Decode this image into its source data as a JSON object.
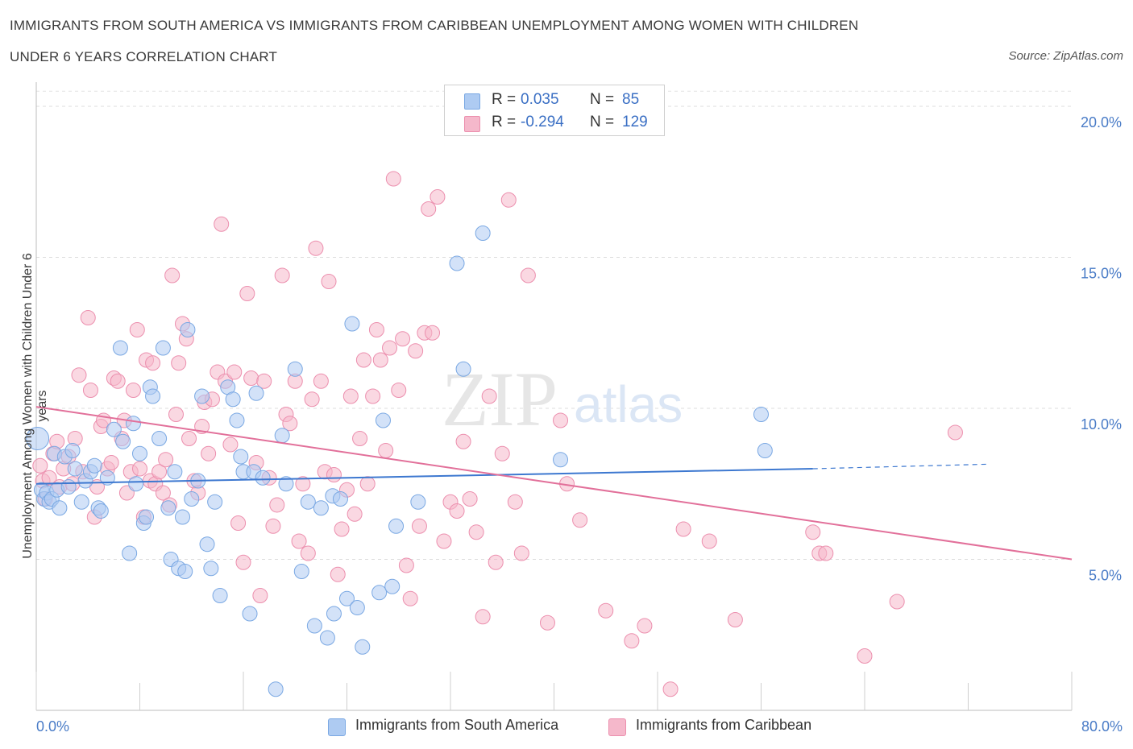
{
  "title": "IMMIGRANTS FROM SOUTH AMERICA VS IMMIGRANTS FROM CARIBBEAN UNEMPLOYMENT AMONG WOMEN WITH CHILDREN",
  "subtitle": "UNDER 6 YEARS CORRELATION CHART",
  "source": "Source: ZipAtlas.com",
  "watermark": "ZIPatlas",
  "legend": {
    "rows": [
      {
        "r_label": "R =",
        "r_value": "0.035",
        "n_label": "N =",
        "n_value": "85",
        "color": "#aecbf2"
      },
      {
        "r_label": "R =",
        "r_value": "-0.294",
        "n_label": "N =",
        "n_value": "129",
        "color": "#f5b8cb"
      }
    ]
  },
  "chart_data": {
    "type": "scatter",
    "title": "IMMIGRANTS FROM SOUTH AMERICA VS IMMIGRANTS FROM CARIBBEAN UNEMPLOYMENT AMONG WOMEN WITH CHILDREN UNDER 6 YEARS CORRELATION CHART",
    "xlabel": "",
    "ylabel": "Unemployment Among Women with Children Under 6 years",
    "xlim": [
      0,
      80
    ],
    "ylim": [
      0,
      20.8
    ],
    "x_tick_labels": [
      "0.0%",
      "80.0%"
    ],
    "y_ticks": [
      5,
      10,
      15,
      20
    ],
    "y_tick_labels": [
      "5.0%",
      "10.0%",
      "15.0%",
      "20.0%"
    ],
    "grid": true,
    "legend_position": "bottom-center",
    "series": [
      {
        "name": "Immigrants from South America",
        "color": "#7aa8e3",
        "fill": "#aecbf2",
        "trend": {
          "x": [
            0,
            60
          ],
          "y": [
            7.5,
            8.0
          ],
          "dashed_to": [
            73.5,
            8.15
          ]
        },
        "points": [
          [
            0.1,
            9.0
          ],
          [
            0.4,
            7.3
          ],
          [
            0.6,
            7.0
          ],
          [
            0.8,
            7.2
          ],
          [
            1.0,
            6.9
          ],
          [
            1.2,
            7.0
          ],
          [
            1.4,
            8.5
          ],
          [
            1.6,
            7.3
          ],
          [
            1.8,
            6.7
          ],
          [
            2.2,
            8.4
          ],
          [
            2.5,
            7.4
          ],
          [
            2.8,
            8.6
          ],
          [
            3.0,
            8.0
          ],
          [
            3.5,
            6.9
          ],
          [
            3.8,
            7.6
          ],
          [
            4.2,
            7.9
          ],
          [
            4.5,
            8.1
          ],
          [
            4.8,
            6.7
          ],
          [
            5.0,
            6.6
          ],
          [
            5.5,
            7.7
          ],
          [
            6.0,
            9.3
          ],
          [
            6.5,
            12.0
          ],
          [
            6.7,
            8.9
          ],
          [
            7.2,
            5.2
          ],
          [
            7.5,
            9.5
          ],
          [
            7.7,
            7.5
          ],
          [
            8.0,
            8.5
          ],
          [
            8.3,
            6.2
          ],
          [
            8.5,
            6.4
          ],
          [
            8.8,
            10.7
          ],
          [
            9.0,
            10.4
          ],
          [
            9.5,
            9.0
          ],
          [
            9.8,
            12.0
          ],
          [
            10.2,
            6.7
          ],
          [
            10.4,
            5.0
          ],
          [
            10.7,
            7.9
          ],
          [
            11.0,
            4.7
          ],
          [
            11.3,
            6.4
          ],
          [
            11.5,
            4.6
          ],
          [
            11.7,
            12.6
          ],
          [
            12.0,
            7.0
          ],
          [
            12.5,
            7.6
          ],
          [
            12.8,
            10.4
          ],
          [
            13.2,
            5.5
          ],
          [
            13.5,
            4.7
          ],
          [
            13.8,
            6.9
          ],
          [
            14.2,
            3.8
          ],
          [
            14.8,
            10.7
          ],
          [
            15.2,
            10.3
          ],
          [
            15.5,
            9.6
          ],
          [
            15.8,
            8.4
          ],
          [
            16.0,
            7.9
          ],
          [
            16.5,
            3.2
          ],
          [
            16.8,
            7.9
          ],
          [
            17.0,
            10.5
          ],
          [
            17.5,
            7.7
          ],
          [
            18.5,
            0.7
          ],
          [
            19.0,
            9.1
          ],
          [
            19.3,
            7.5
          ],
          [
            20.0,
            11.3
          ],
          [
            20.5,
            4.6
          ],
          [
            21.0,
            6.9
          ],
          [
            21.5,
            2.8
          ],
          [
            22.0,
            6.7
          ],
          [
            22.5,
            2.4
          ],
          [
            22.9,
            7.1
          ],
          [
            23.0,
            3.2
          ],
          [
            23.5,
            7.0
          ],
          [
            24.0,
            3.7
          ],
          [
            24.4,
            12.8
          ],
          [
            24.8,
            3.4
          ],
          [
            25.2,
            2.1
          ],
          [
            26.5,
            3.9
          ],
          [
            26.8,
            9.6
          ],
          [
            27.5,
            4.1
          ],
          [
            27.8,
            6.1
          ],
          [
            29.5,
            6.9
          ],
          [
            32.5,
            14.8
          ],
          [
            33.0,
            11.3
          ],
          [
            34.5,
            15.8
          ],
          [
            40.5,
            8.3
          ],
          [
            56.0,
            9.8
          ],
          [
            56.3,
            8.6
          ]
        ]
      },
      {
        "name": "Immigrants from Caribbean",
        "color": "#ec8fae",
        "fill": "#f5b8cb",
        "trend": {
          "x": [
            0,
            80
          ],
          "y": [
            10.05,
            5.0
          ]
        },
        "points": [
          [
            0.3,
            8.1
          ],
          [
            0.5,
            7.6
          ],
          [
            0.7,
            7.0
          ],
          [
            1.0,
            7.7
          ],
          [
            1.3,
            8.5
          ],
          [
            1.6,
            8.9
          ],
          [
            1.8,
            7.4
          ],
          [
            2.1,
            8.0
          ],
          [
            2.5,
            8.4
          ],
          [
            2.8,
            7.5
          ],
          [
            3.0,
            9.0
          ],
          [
            3.3,
            11.1
          ],
          [
            3.6,
            7.9
          ],
          [
            4.0,
            13.0
          ],
          [
            4.2,
            10.6
          ],
          [
            4.5,
            6.4
          ],
          [
            4.7,
            7.4
          ],
          [
            5.0,
            9.4
          ],
          [
            5.2,
            9.6
          ],
          [
            5.5,
            8.0
          ],
          [
            5.8,
            8.2
          ],
          [
            6.0,
            11.0
          ],
          [
            6.3,
            10.9
          ],
          [
            6.6,
            9.0
          ],
          [
            6.8,
            9.6
          ],
          [
            7.0,
            7.2
          ],
          [
            7.3,
            7.9
          ],
          [
            7.5,
            10.6
          ],
          [
            7.8,
            12.6
          ],
          [
            8.0,
            8.0
          ],
          [
            8.3,
            6.4
          ],
          [
            8.5,
            11.6
          ],
          [
            8.8,
            7.6
          ],
          [
            9.0,
            11.5
          ],
          [
            9.2,
            7.5
          ],
          [
            9.5,
            7.9
          ],
          [
            9.8,
            7.2
          ],
          [
            10.0,
            8.3
          ],
          [
            10.3,
            6.8
          ],
          [
            10.5,
            14.4
          ],
          [
            10.8,
            9.8
          ],
          [
            11.0,
            11.5
          ],
          [
            11.3,
            12.8
          ],
          [
            11.6,
            12.3
          ],
          [
            11.8,
            9.0
          ],
          [
            12.2,
            7.6
          ],
          [
            12.5,
            7.2
          ],
          [
            12.8,
            9.4
          ],
          [
            13.0,
            10.2
          ],
          [
            13.3,
            8.5
          ],
          [
            13.6,
            10.3
          ],
          [
            14.0,
            11.2
          ],
          [
            14.3,
            16.1
          ],
          [
            14.6,
            10.9
          ],
          [
            15.0,
            8.8
          ],
          [
            15.3,
            11.2
          ],
          [
            15.6,
            6.2
          ],
          [
            16.0,
            4.9
          ],
          [
            16.3,
            13.8
          ],
          [
            16.6,
            11.0
          ],
          [
            17.0,
            8.2
          ],
          [
            17.3,
            3.8
          ],
          [
            17.6,
            10.9
          ],
          [
            18.0,
            7.7
          ],
          [
            18.3,
            6.1
          ],
          [
            18.6,
            6.8
          ],
          [
            19.0,
            14.4
          ],
          [
            19.3,
            9.8
          ],
          [
            19.6,
            9.5
          ],
          [
            20.0,
            10.9
          ],
          [
            20.3,
            5.6
          ],
          [
            20.6,
            7.5
          ],
          [
            21.0,
            5.2
          ],
          [
            21.3,
            10.3
          ],
          [
            21.6,
            15.3
          ],
          [
            22.0,
            10.9
          ],
          [
            22.3,
            7.9
          ],
          [
            22.6,
            14.2
          ],
          [
            23.0,
            7.8
          ],
          [
            23.3,
            4.5
          ],
          [
            23.6,
            6.0
          ],
          [
            24.0,
            7.3
          ],
          [
            24.3,
            10.4
          ],
          [
            24.6,
            6.5
          ],
          [
            25.0,
            9.0
          ],
          [
            25.3,
            11.6
          ],
          [
            25.6,
            7.5
          ],
          [
            26.0,
            10.4
          ],
          [
            26.3,
            12.6
          ],
          [
            26.6,
            11.6
          ],
          [
            27.0,
            8.6
          ],
          [
            27.3,
            12.0
          ],
          [
            27.6,
            17.6
          ],
          [
            28.0,
            10.6
          ],
          [
            28.3,
            12.3
          ],
          [
            28.6,
            4.8
          ],
          [
            28.9,
            3.7
          ],
          [
            29.3,
            11.9
          ],
          [
            29.6,
            6.1
          ],
          [
            30.0,
            12.5
          ],
          [
            30.3,
            16.6
          ],
          [
            30.6,
            12.5
          ],
          [
            31.0,
            17.0
          ],
          [
            31.5,
            5.6
          ],
          [
            32.0,
            6.9
          ],
          [
            32.5,
            6.6
          ],
          [
            33.0,
            8.9
          ],
          [
            33.5,
            7.0
          ],
          [
            34.0,
            5.9
          ],
          [
            34.5,
            3.1
          ],
          [
            35.0,
            10.4
          ],
          [
            35.5,
            4.9
          ],
          [
            36.0,
            8.5
          ],
          [
            36.5,
            16.9
          ],
          [
            37.0,
            6.9
          ],
          [
            37.5,
            5.2
          ],
          [
            38.0,
            14.4
          ],
          [
            39.5,
            2.9
          ],
          [
            40.5,
            9.6
          ],
          [
            41.0,
            7.5
          ],
          [
            42.0,
            6.3
          ],
          [
            44.0,
            3.3
          ],
          [
            46.0,
            2.3
          ],
          [
            47.0,
            2.8
          ],
          [
            49.0,
            0.7
          ],
          [
            50.0,
            6.0
          ],
          [
            52.0,
            5.6
          ],
          [
            54.0,
            3.0
          ],
          [
            60.0,
            5.9
          ],
          [
            60.5,
            5.2
          ],
          [
            61.0,
            5.2
          ],
          [
            64.0,
            1.8
          ],
          [
            66.5,
            3.6
          ],
          [
            71.0,
            9.2
          ]
        ]
      }
    ]
  }
}
